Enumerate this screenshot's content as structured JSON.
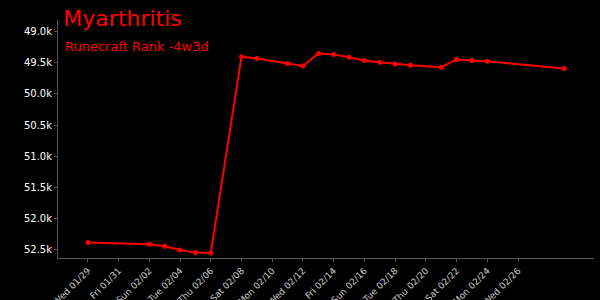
{
  "chart_data": {
    "type": "line",
    "title": "Myarthritis",
    "subtitle": "Runecraft Rank -4w3d",
    "color": "#ff0000",
    "marker": "circle",
    "grid": false,
    "categories": [
      "Wed 01/29",
      null,
      "Fri 01/31",
      null,
      "Sun 02/02",
      null,
      "Tue 02/04",
      null,
      "Thu 02/06",
      null,
      "Sat 02/08",
      null,
      "Mon 02/10",
      null,
      "Wed 02/12",
      null,
      "Fri 02/14",
      null,
      "Sun 02/16",
      null,
      "Tue 02/18",
      null,
      "Thu 02/20",
      null,
      "Sat 02/22",
      null,
      "Mon 02/24",
      null,
      "Wed 02/26",
      null,
      null,
      null
    ],
    "values": [
      52390,
      null,
      null,
      null,
      52420,
      52450,
      52510,
      52550,
      52560,
      null,
      49400,
      49430,
      null,
      49510,
      49550,
      49350,
      49365,
      49410,
      49460,
      49490,
      49520,
      49540,
      null,
      49570,
      49445,
      49460,
      49475,
      null,
      null,
      null,
      null,
      49590
    ],
    "ylim": [
      52640,
      48810
    ],
    "yticks": [
      {
        "value": 49000,
        "label": "49.0k"
      },
      {
        "value": 49500,
        "label": "49.5k"
      },
      {
        "value": 50000,
        "label": "50.0k"
      },
      {
        "value": 50500,
        "label": "50.5k"
      },
      {
        "value": 51000,
        "label": "51.0k"
      },
      {
        "value": 51500,
        "label": "51.5k"
      },
      {
        "value": 52000,
        "label": "52.0k"
      },
      {
        "value": 52500,
        "label": "52.5k"
      }
    ]
  }
}
